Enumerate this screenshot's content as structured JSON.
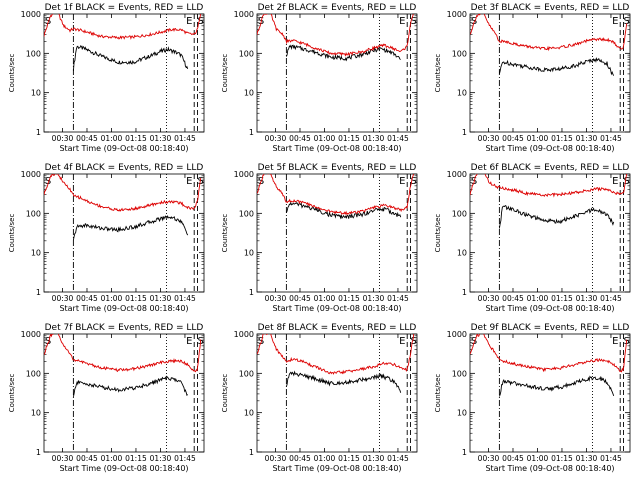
{
  "figure": {
    "start_time_label": "Start Time (09-Oct-08 00:18:40)",
    "ylabel": "Counts/sec",
    "x_ticks": [
      "00:30",
      "00:45",
      "01:00",
      "01:15",
      "01:30",
      "01:45"
    ],
    "y_ticks": [
      "1",
      "10",
      "100",
      "1000"
    ],
    "marker_labels": [
      "S",
      "E",
      "S"
    ],
    "series_colors": {
      "events": "#000000",
      "lld": "#dd0000"
    }
  },
  "chart_data": [
    {
      "type": "line",
      "title": "Det 1f BLACK = Events, RED = LLD",
      "xlabel": "Start Time (09-Oct-08 00:18:40)",
      "ylabel": "Counts/sec",
      "x_unit": "minutes after 00:18:40",
      "x_range": [
        0,
        98
      ],
      "y_range": [
        1,
        1000
      ],
      "y_scale": "log",
      "x_ticks": [
        "00:30",
        "00:45",
        "01:00",
        "01:15",
        "01:30",
        "01:45"
      ],
      "y_ticks": [
        "1",
        "10",
        "100",
        "1000"
      ],
      "markers": {
        "dashdot": 18,
        "dotted": 75,
        "dashed": [
          92,
          94
        ],
        "labels": {
          "S": 0,
          "E": 89,
          "S2": 96
        }
      },
      "series": [
        {
          "name": "Events",
          "color": "#000000",
          "x": [
            18,
            20,
            25,
            35,
            45,
            55,
            65,
            72,
            76,
            80,
            84,
            88
          ],
          "y": [
            40,
            150,
            130,
            85,
            60,
            60,
            85,
            115,
            125,
            110,
            90,
            40
          ]
        },
        {
          "name": "LLD",
          "color": "#dd0000",
          "x": [
            0,
            4,
            8,
            12,
            16,
            18,
            22,
            28,
            35,
            45,
            55,
            65,
            72,
            78,
            84,
            88,
            92,
            94,
            96
          ],
          "y": [
            280,
            900,
            1200,
            500,
            380,
            420,
            390,
            330,
            270,
            250,
            260,
            300,
            350,
            400,
            400,
            320,
            300,
            400,
            1100
          ]
        }
      ]
    },
    {
      "type": "line",
      "title": "Det 2f BLACK = Events, RED = LLD",
      "xlabel": "Start Time (09-Oct-08 00:18:40)",
      "ylabel": "Counts/sec",
      "x_unit": "minutes after 00:18:40",
      "x_range": [
        0,
        98
      ],
      "y_range": [
        1,
        1000
      ],
      "y_scale": "log",
      "x_ticks": [
        "00:30",
        "00:45",
        "01:00",
        "01:15",
        "01:30",
        "01:45"
      ],
      "y_ticks": [
        "1",
        "10",
        "100",
        "1000"
      ],
      "markers": {
        "dashdot": 18,
        "dotted": 75,
        "dashed": [
          92,
          94
        ],
        "labels": {
          "S": 0,
          "E": 89,
          "S2": 96
        }
      },
      "series": [
        {
          "name": "Events",
          "color": "#000000",
          "x": [
            18,
            20,
            25,
            35,
            45,
            55,
            65,
            72,
            76,
            80,
            84,
            88
          ],
          "y": [
            90,
            150,
            140,
            110,
            80,
            75,
            95,
            120,
            130,
            115,
            95,
            70
          ]
        },
        {
          "name": "LLD",
          "color": "#dd0000",
          "x": [
            0,
            4,
            8,
            12,
            16,
            18,
            22,
            28,
            35,
            45,
            55,
            65,
            72,
            78,
            84,
            88,
            92,
            94,
            96
          ],
          "y": [
            300,
            1000,
            1100,
            400,
            300,
            200,
            210,
            180,
            140,
            100,
            95,
            110,
            140,
            160,
            130,
            110,
            150,
            600,
            1100
          ]
        }
      ]
    },
    {
      "type": "line",
      "title": "Det 3f BLACK = Events, RED = LLD",
      "xlabel": "Start Time (09-Oct-08 00:18:40)",
      "ylabel": "Counts/sec",
      "x_unit": "minutes after 00:18:40",
      "x_range": [
        0,
        98
      ],
      "y_range": [
        1,
        1000
      ],
      "y_scale": "log",
      "x_ticks": [
        "00:30",
        "00:45",
        "01:00",
        "01:15",
        "01:30",
        "01:45"
      ],
      "y_ticks": [
        "1",
        "10",
        "100",
        "1000"
      ],
      "markers": {
        "dashdot": 18,
        "dotted": 75,
        "dashed": [
          92,
          94
        ],
        "labels": {
          "S": 0,
          "E": 89,
          "S2": 96
        }
      },
      "series": [
        {
          "name": "Events",
          "color": "#000000",
          "x": [
            18,
            20,
            25,
            35,
            45,
            55,
            65,
            72,
            76,
            80,
            84,
            88
          ],
          "y": [
            30,
            60,
            55,
            45,
            38,
            40,
            50,
            62,
            70,
            65,
            55,
            25
          ]
        },
        {
          "name": "LLD",
          "color": "#dd0000",
          "x": [
            0,
            4,
            8,
            12,
            16,
            18,
            22,
            28,
            35,
            45,
            55,
            65,
            72,
            78,
            84,
            88,
            92,
            94,
            96
          ],
          "y": [
            300,
            900,
            1100,
            500,
            300,
            200,
            200,
            170,
            150,
            130,
            140,
            170,
            210,
            230,
            220,
            190,
            130,
            140,
            600
          ]
        }
      ]
    },
    {
      "type": "line",
      "title": "Det 4f BLACK = Events, RED = LLD",
      "xlabel": "Start Time (09-Oct-08 00:18:40)",
      "ylabel": "Counts/sec",
      "x_unit": "minutes after 00:18:40",
      "x_range": [
        0,
        98
      ],
      "y_range": [
        1,
        1000
      ],
      "y_scale": "log",
      "x_ticks": [
        "00:30",
        "00:45",
        "01:00",
        "01:15",
        "01:30",
        "01:45"
      ],
      "y_ticks": [
        "1",
        "10",
        "100",
        "1000"
      ],
      "markers": {
        "dashdot": 18,
        "dotted": 75,
        "dashed": [
          92,
          94
        ],
        "labels": {
          "S": 0,
          "E": 89,
          "S2": 96
        }
      },
      "series": [
        {
          "name": "Events",
          "color": "#000000",
          "x": [
            18,
            20,
            25,
            35,
            45,
            55,
            65,
            72,
            76,
            80,
            84,
            88
          ],
          "y": [
            20,
            45,
            50,
            42,
            38,
            45,
            60,
            75,
            82,
            75,
            62,
            30
          ]
        },
        {
          "name": "LLD",
          "color": "#dd0000",
          "x": [
            0,
            4,
            8,
            12,
            16,
            18,
            22,
            28,
            35,
            45,
            55,
            65,
            72,
            78,
            84,
            88,
            92,
            94,
            96
          ],
          "y": [
            300,
            900,
            1100,
            600,
            400,
            280,
            250,
            190,
            150,
            120,
            130,
            160,
            190,
            200,
            180,
            140,
            130,
            200,
            800
          ]
        }
      ]
    },
    {
      "type": "line",
      "title": "Det 5f BLACK = Events, RED = LLD",
      "xlabel": "Start Time (09-Oct-08 00:18:40)",
      "ylabel": "Counts/sec",
      "x_unit": "minutes after 00:18:40",
      "x_range": [
        0,
        98
      ],
      "y_range": [
        1,
        1000
      ],
      "y_scale": "log",
      "x_ticks": [
        "00:30",
        "00:45",
        "01:00",
        "01:15",
        "01:30",
        "01:45"
      ],
      "y_ticks": [
        "1",
        "10",
        "100",
        "1000"
      ],
      "markers": {
        "dashdot": 18,
        "dotted": 75,
        "dashed": [
          92,
          94
        ],
        "labels": {
          "S": 0,
          "E": 89,
          "S2": 96
        }
      },
      "series": [
        {
          "name": "Events",
          "color": "#000000",
          "x": [
            18,
            20,
            25,
            35,
            45,
            55,
            65,
            72,
            76,
            80,
            84,
            88
          ],
          "y": [
            100,
            180,
            170,
            130,
            90,
            80,
            95,
            120,
            130,
            120,
            100,
            80
          ]
        },
        {
          "name": "LLD",
          "color": "#dd0000",
          "x": [
            0,
            4,
            8,
            12,
            16,
            18,
            22,
            28,
            35,
            45,
            55,
            65,
            72,
            78,
            84,
            88,
            92,
            94,
            96
          ],
          "y": [
            300,
            1000,
            1100,
            450,
            300,
            200,
            210,
            190,
            150,
            110,
            100,
            115,
            140,
            160,
            140,
            120,
            150,
            500,
            1000
          ]
        }
      ]
    },
    {
      "type": "line",
      "title": "Det 6f BLACK = Events, RED = LLD",
      "xlabel": "Start Time (09-Oct-08 00:18:40)",
      "ylabel": "Counts/sec",
      "x_unit": "minutes after 00:18:40",
      "x_range": [
        0,
        98
      ],
      "y_range": [
        1,
        1000
      ],
      "y_scale": "log",
      "x_ticks": [
        "00:30",
        "00:45",
        "01:00",
        "01:15",
        "01:30",
        "01:45"
      ],
      "y_ticks": [
        "1",
        "10",
        "100",
        "1000"
      ],
      "markers": {
        "dashdot": 18,
        "dotted": 75,
        "dashed": [
          92,
          94
        ],
        "labels": {
          "S": 0,
          "E": 89,
          "S2": 96
        }
      },
      "series": [
        {
          "name": "Events",
          "color": "#000000",
          "x": [
            18,
            20,
            25,
            35,
            45,
            55,
            65,
            72,
            76,
            80,
            84,
            88
          ],
          "y": [
            40,
            150,
            130,
            90,
            65,
            62,
            85,
            110,
            125,
            110,
            90,
            55
          ]
        },
        {
          "name": "LLD",
          "color": "#dd0000",
          "x": [
            0,
            4,
            8,
            12,
            16,
            18,
            22,
            28,
            35,
            45,
            55,
            65,
            72,
            78,
            84,
            88,
            92,
            94,
            96
          ],
          "y": [
            300,
            1000,
            1200,
            600,
            480,
            450,
            420,
            380,
            320,
            290,
            300,
            340,
            380,
            420,
            400,
            350,
            300,
            320,
            1000
          ]
        }
      ]
    },
    {
      "type": "line",
      "title": "Det 7f BLACK = Events, RED = LLD",
      "xlabel": "Start Time (09-Oct-08 00:18:40)",
      "ylabel": "Counts/sec",
      "x_unit": "minutes after 00:18:40",
      "x_range": [
        0,
        98
      ],
      "y_range": [
        1,
        1000
      ],
      "y_scale": "log",
      "x_ticks": [
        "00:30",
        "00:45",
        "01:00",
        "01:15",
        "01:30",
        "01:45"
      ],
      "y_ticks": [
        "1",
        "10",
        "100",
        "1000"
      ],
      "markers": {
        "dashdot": 18,
        "dotted": 75,
        "dashed": [
          92,
          94
        ],
        "labels": {
          "S": 0,
          "E": 89,
          "S2": 96
        }
      },
      "series": [
        {
          "name": "Events",
          "color": "#000000",
          "x": [
            18,
            20,
            25,
            35,
            45,
            55,
            65,
            72,
            76,
            80,
            84,
            88
          ],
          "y": [
            25,
            60,
            55,
            45,
            38,
            42,
            55,
            70,
            75,
            70,
            58,
            28
          ]
        },
        {
          "name": "LLD",
          "color": "#dd0000",
          "x": [
            0,
            4,
            8,
            12,
            16,
            18,
            22,
            28,
            35,
            45,
            55,
            65,
            72,
            78,
            84,
            88,
            92,
            94,
            96
          ],
          "y": [
            300,
            900,
            1100,
            500,
            320,
            220,
            200,
            170,
            140,
            120,
            130,
            160,
            190,
            210,
            200,
            170,
            110,
            130,
            700
          ]
        }
      ]
    },
    {
      "type": "line",
      "title": "Det 8f BLACK = Events, RED = LLD",
      "xlabel": "Start Time (09-Oct-08 00:18:40)",
      "ylabel": "Counts/sec",
      "x_unit": "minutes after 00:18:40",
      "x_range": [
        0,
        98
      ],
      "y_range": [
        1,
        1000
      ],
      "y_scale": "log",
      "x_ticks": [
        "00:30",
        "00:45",
        "01:00",
        "01:15",
        "01:30",
        "01:45"
      ],
      "y_ticks": [
        "1",
        "10",
        "100",
        "1000"
      ],
      "markers": {
        "dashdot": 18,
        "dotted": 75,
        "dashed": [
          92,
          94
        ],
        "labels": {
          "S": 0,
          "E": 89,
          "S2": 96
        }
      },
      "series": [
        {
          "name": "Events",
          "color": "#000000",
          "x": [
            18,
            20,
            25,
            35,
            45,
            55,
            65,
            72,
            76,
            80,
            84,
            88
          ],
          "y": [
            50,
            100,
            95,
            75,
            55,
            60,
            70,
            80,
            85,
            75,
            60,
            35
          ]
        },
        {
          "name": "LLD",
          "color": "#dd0000",
          "x": [
            0,
            4,
            8,
            12,
            16,
            18,
            22,
            28,
            35,
            45,
            55,
            65,
            72,
            78,
            84,
            88,
            92,
            94,
            96
          ],
          "y": [
            300,
            1000,
            1100,
            400,
            250,
            200,
            230,
            200,
            150,
            100,
            110,
            130,
            150,
            180,
            170,
            140,
            120,
            300,
            1000
          ]
        }
      ]
    },
    {
      "type": "line",
      "title": "Det 9f BLACK = Events, RED = LLD",
      "xlabel": "Start Time (09-Oct-08 00:18:40)",
      "ylabel": "Counts/sec",
      "x_unit": "minutes after 00:18:40",
      "x_range": [
        0,
        98
      ],
      "y_range": [
        1,
        1000
      ],
      "y_scale": "log",
      "x_ticks": [
        "00:30",
        "00:45",
        "01:00",
        "01:15",
        "01:30",
        "01:45"
      ],
      "y_ticks": [
        "1",
        "10",
        "100",
        "1000"
      ],
      "markers": {
        "dashdot": 18,
        "dotted": 75,
        "dashed": [
          92,
          94
        ],
        "labels": {
          "S": 0,
          "E": 89,
          "S2": 96
        }
      },
      "series": [
        {
          "name": "Events",
          "color": "#000000",
          "x": [
            18,
            20,
            25,
            35,
            45,
            55,
            65,
            72,
            76,
            80,
            84,
            88
          ],
          "y": [
            25,
            62,
            58,
            48,
            40,
            44,
            58,
            72,
            78,
            72,
            60,
            28
          ]
        },
        {
          "name": "LLD",
          "color": "#dd0000",
          "x": [
            0,
            4,
            8,
            12,
            16,
            18,
            22,
            28,
            35,
            45,
            55,
            65,
            72,
            78,
            84,
            88,
            92,
            94,
            96
          ],
          "y": [
            300,
            900,
            1100,
            500,
            320,
            220,
            200,
            170,
            150,
            125,
            135,
            170,
            200,
            220,
            210,
            170,
            110,
            130,
            700
          ]
        }
      ]
    }
  ]
}
